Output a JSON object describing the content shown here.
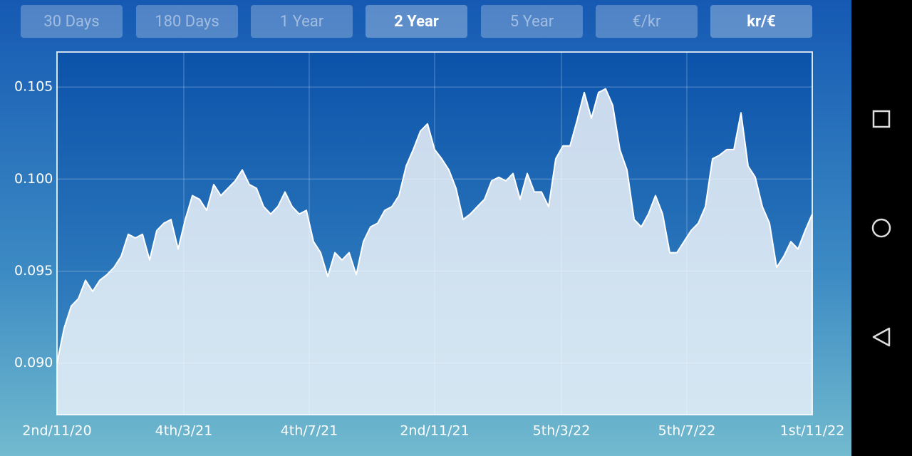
{
  "buttons": [
    {
      "label": "30 Days",
      "selected": false
    },
    {
      "label": "180 Days",
      "selected": false
    },
    {
      "label": "1 Year",
      "selected": false
    },
    {
      "label": "2 Year",
      "selected": true
    },
    {
      "label": "5 Year",
      "selected": false
    },
    {
      "label": "€/kr",
      "selected": false
    },
    {
      "label": "kr/€",
      "selected": true
    }
  ],
  "chart_data": {
    "type": "area",
    "color": "#ffffff",
    "grid": true,
    "xlim": [
      0,
      106
    ],
    "xticks": [
      {
        "value": 0,
        "label": "2nd/11/20"
      },
      {
        "value": 17.8,
        "label": "4th/3/21"
      },
      {
        "value": 35.4,
        "label": "4th/7/21"
      },
      {
        "value": 53,
        "label": "2nd/11/21"
      },
      {
        "value": 70.8,
        "label": "5th/3/22"
      },
      {
        "value": 88.4,
        "label": "5th/7/22"
      },
      {
        "value": 106,
        "label": "1st/11/22"
      }
    ],
    "ylim": [
      0.0872,
      0.1069
    ],
    "yticks": [
      {
        "value": 0.09,
        "label": "0.090"
      },
      0.095,
      {
        "value": 0.1,
        "label": "0.100"
      },
      0.105
    ],
    "values": [
      0.09,
      0.0919,
      0.0931,
      0.0935,
      0.0945,
      0.0939,
      0.0945,
      0.0948,
      0.0952,
      0.0958,
      0.097,
      0.0968,
      0.097,
      0.0956,
      0.0972,
      0.0976,
      0.0978,
      0.0962,
      0.0978,
      0.0991,
      0.0989,
      0.0983,
      0.0997,
      0.0991,
      0.0995,
      0.0999,
      0.1005,
      0.0997,
      0.0995,
      0.0985,
      0.0981,
      0.0985,
      0.0993,
      0.0985,
      0.0981,
      0.0983,
      0.0966,
      0.096,
      0.0947,
      0.096,
      0.0956,
      0.096,
      0.0948,
      0.0966,
      0.0974,
      0.0976,
      0.0983,
      0.0985,
      0.0991,
      0.1007,
      0.1016,
      0.1026,
      0.103,
      0.1016,
      0.1011,
      0.1005,
      0.0995,
      0.0978,
      0.0981,
      0.0985,
      0.0989,
      0.0999,
      0.1001,
      0.0999,
      0.1003,
      0.0989,
      0.1003,
      0.0993,
      0.0993,
      0.0985,
      0.1011,
      0.1018,
      0.1018,
      0.1032,
      0.1047,
      0.1033,
      0.1047,
      0.1049,
      0.104,
      0.1016,
      0.1005,
      0.0978,
      0.0974,
      0.0981,
      0.0991,
      0.0981,
      0.096,
      0.096,
      0.0966,
      0.0972,
      0.0976,
      0.0985,
      0.1011,
      0.1013,
      0.1016,
      0.1016,
      0.1036,
      0.1007,
      0.1001,
      0.0985,
      0.0976,
      0.0952,
      0.0958,
      0.0966,
      0.0962,
      0.0972,
      0.0981
    ]
  }
}
